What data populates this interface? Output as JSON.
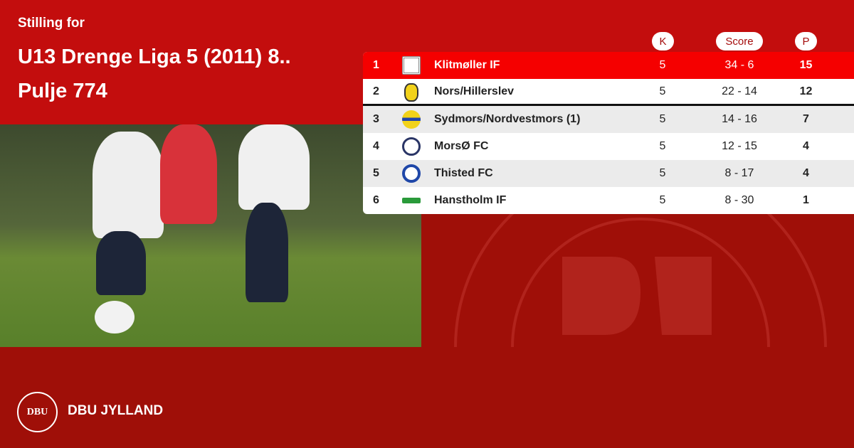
{
  "header": {
    "subtitle": "Stilling for",
    "title_line1": "U13 Drenge Liga 5 (2011) 8..",
    "title_line2": "Pulje 774"
  },
  "columns": {
    "k": "K",
    "score": "Score",
    "p": "P"
  },
  "colors": {
    "top_band": "#c30d0d",
    "background": "#9f0f08",
    "highlight_row": "#f50000"
  },
  "standings": [
    {
      "rank": "1",
      "team": "Klitmøller IF",
      "k": "5",
      "score": "34 - 6",
      "p": "15",
      "logo": "klitmoller-logo"
    },
    {
      "rank": "2",
      "team": "Nors/Hillerslev",
      "k": "5",
      "score": "22 - 14",
      "p": "12",
      "logo": "nbk-logo"
    },
    {
      "rank": "3",
      "team": "Sydmors/Nordvestmors (1)",
      "k": "5",
      "score": "14 - 16",
      "p": "7",
      "logo": "sydmors-logo"
    },
    {
      "rank": "4",
      "team": "MorsØ FC",
      "k": "5",
      "score": "12 - 15",
      "p": "4",
      "logo": "morso-logo"
    },
    {
      "rank": "5",
      "team": "Thisted FC",
      "k": "5",
      "score": "8 - 17",
      "p": "4",
      "logo": "thisted-logo"
    },
    {
      "rank": "6",
      "team": "Hanstholm IF",
      "k": "5",
      "score": "8 - 30",
      "p": "1",
      "logo": "hanstholm-logo"
    }
  ],
  "footer": {
    "org": "DBU JYLLAND",
    "logo_text": "DBU"
  }
}
